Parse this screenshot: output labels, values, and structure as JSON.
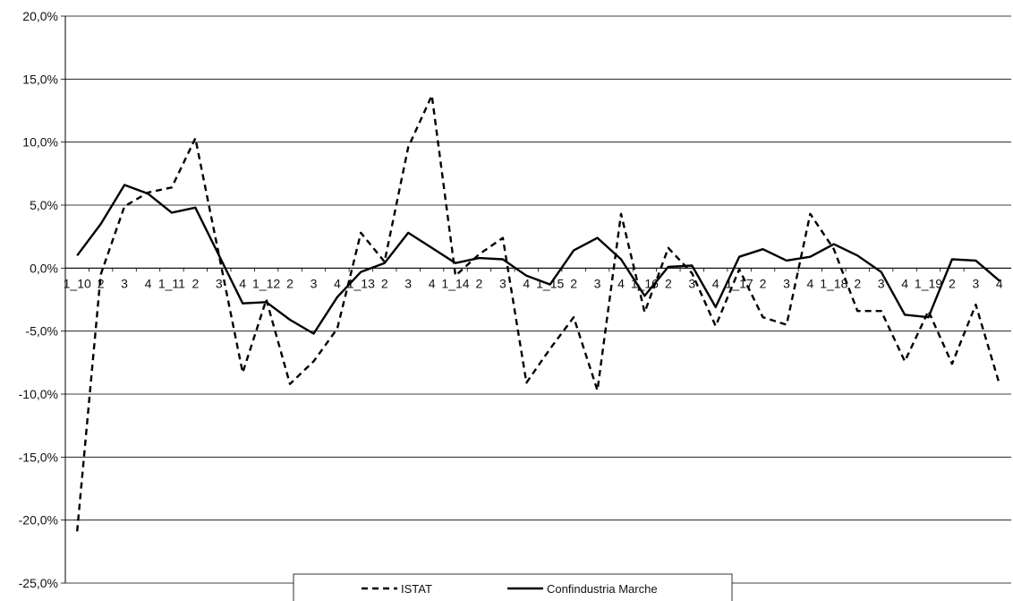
{
  "chart_data": {
    "type": "line",
    "title": "",
    "xlabel": "",
    "ylabel": "",
    "ylim": [
      -25,
      20
    ],
    "ytick_step": 5,
    "ytick_labels": [
      "20,0%",
      "15,0%",
      "10,0%",
      "5,0%",
      "0,0%",
      "-5,0%",
      "-10,0%",
      "-15,0%",
      "-20,0%",
      "-25,0%"
    ],
    "grid": true,
    "legend_position": "bottom",
    "categories": [
      "1_10",
      "2",
      "3",
      "4",
      "1_11",
      "2",
      "3",
      "4",
      "1_12",
      "2",
      "3",
      "4",
      "1_13",
      "2",
      "3",
      "4",
      "1_14",
      "2",
      "3",
      "4",
      "1_15",
      "2",
      "3",
      "4",
      "1_16",
      "2",
      "3",
      "4",
      "1_17",
      "2",
      "3",
      "4",
      "1_18",
      "2",
      "3",
      "4",
      "1_19",
      "2",
      "3",
      "4"
    ],
    "series": [
      {
        "name": "ISTAT",
        "style": "dashed",
        "color": "#000000",
        "values": [
          -20.9,
          -0.5,
          4.9,
          6.0,
          6.4,
          10.3,
          1.0,
          -8.3,
          -2.5,
          -9.2,
          -7.4,
          -4.8,
          2.8,
          0.5,
          9.6,
          13.7,
          -0.6,
          1.1,
          2.4,
          -9.1,
          -6.4,
          -3.9,
          -9.7,
          4.3,
          -3.5,
          1.6,
          -0.4,
          -4.6,
          -0.1,
          -3.9,
          -4.5,
          4.3,
          1.5,
          -3.4,
          -3.4,
          -7.4,
          -3.4,
          -7.6,
          -2.9,
          -9.2
        ]
      },
      {
        "name": "Confindustria Marche",
        "style": "solid",
        "color": "#000000",
        "values": [
          1.0,
          3.5,
          6.6,
          5.9,
          4.4,
          4.8,
          1.0,
          -2.8,
          -2.7,
          -4.1,
          -5.2,
          -2.3,
          -0.3,
          0.4,
          2.8,
          1.6,
          0.4,
          0.8,
          0.7,
          -0.6,
          -1.3,
          1.4,
          2.4,
          0.7,
          -2.2,
          0.1,
          0.2,
          -3.1,
          0.9,
          1.5,
          0.6,
          0.9,
          1.9,
          1.0,
          -0.3,
          -3.7,
          -3.9,
          0.7,
          0.6,
          -1.0
        ]
      }
    ]
  }
}
